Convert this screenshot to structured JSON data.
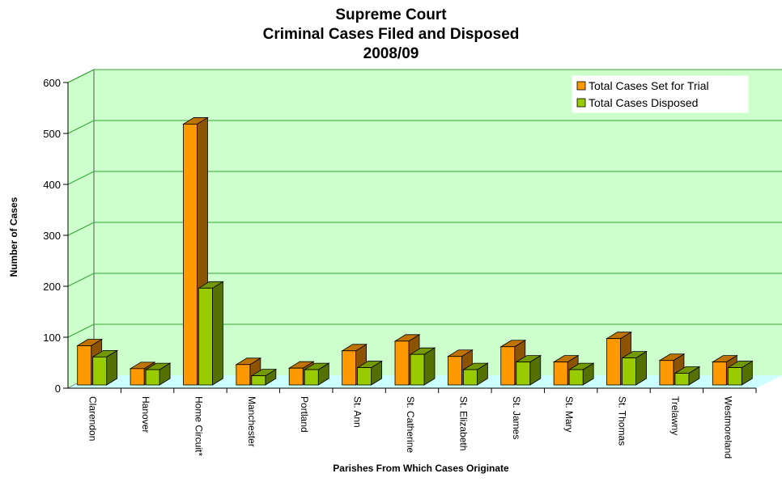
{
  "chart_data": {
    "type": "bar",
    "title": [
      "Supreme Court",
      "Criminal Cases Filed and Disposed",
      "2008/09"
    ],
    "xlabel": "Parishes From Which Cases Originate",
    "ylabel": "Number of Cases",
    "ylim": [
      0,
      600
    ],
    "yticks": [
      "0",
      "100",
      "200",
      "300",
      "400",
      "500",
      "600"
    ],
    "categories": [
      "Clarendon",
      "Hanover",
      "Home Circuit*",
      "Manchester",
      "Portland",
      "St. Ann",
      "St. Catherine",
      "St. Elizabeth",
      "St. James",
      "St. Mary",
      "St. Thomas",
      "Trelawny",
      "Westmoreland"
    ],
    "series": [
      {
        "name": "Total Cases Set for Trial",
        "color": "#ff9900",
        "values": [
          77,
          32,
          512,
          40,
          33,
          67,
          86,
          56,
          75,
          45,
          91,
          48,
          45
        ]
      },
      {
        "name": "Total Cases Disposed",
        "color": "#99cc00",
        "values": [
          55,
          30,
          190,
          18,
          30,
          34,
          60,
          30,
          45,
          30,
          53,
          23,
          34
        ]
      }
    ],
    "legend_position": "top-right",
    "grid": true,
    "plot_background": "#ccffcc",
    "floor_color": "#ccffff"
  }
}
